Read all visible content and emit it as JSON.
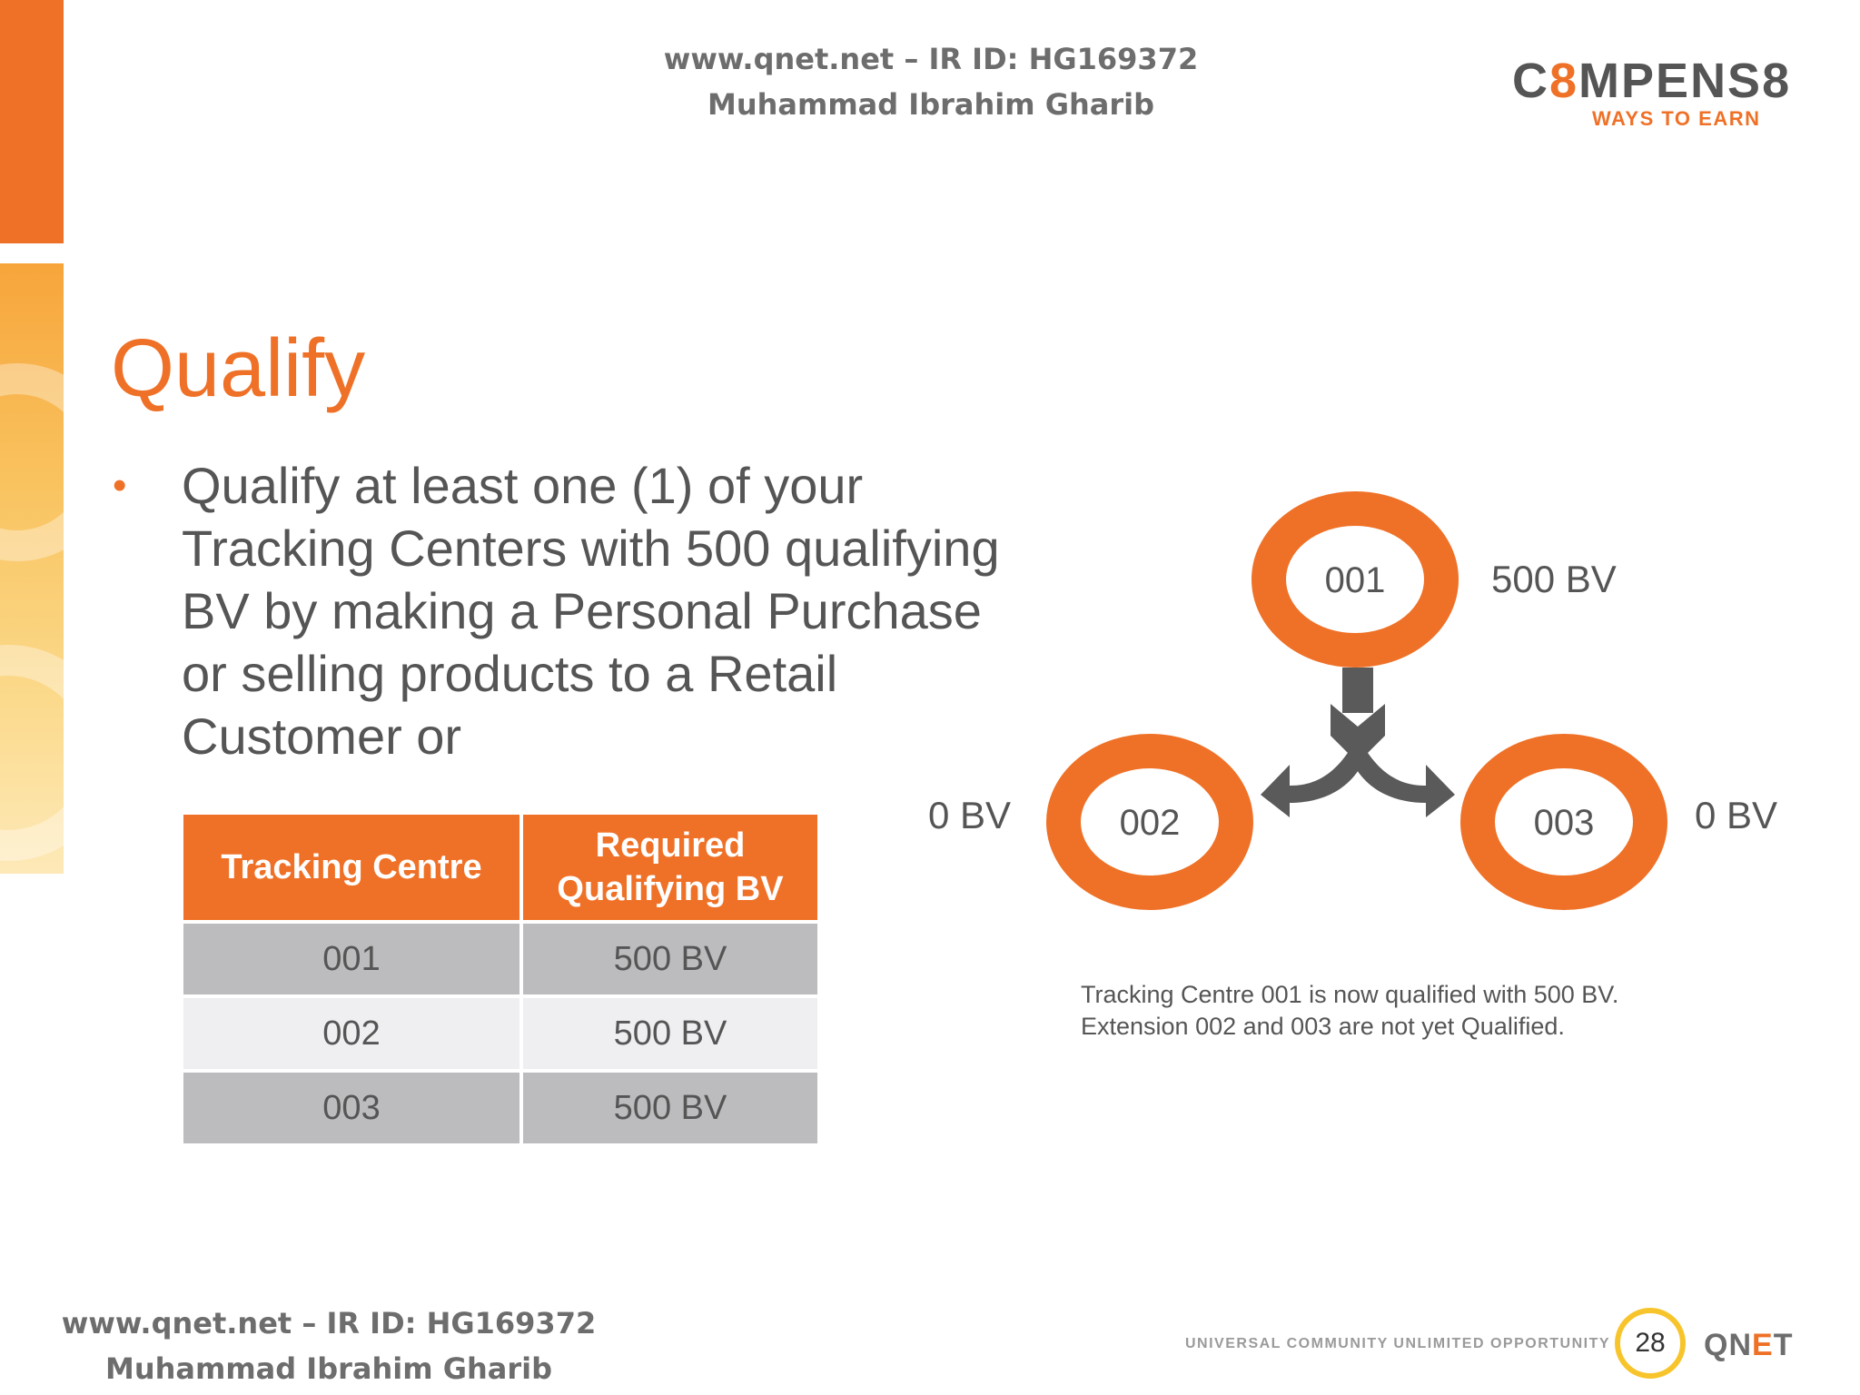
{
  "header_watermark": {
    "line1": "www.qnet.net – IR ID: HG169372",
    "line2": "Muhammad Ibrahim Gharib"
  },
  "logo": {
    "word_prefix": "C",
    "word_8": "8",
    "word_mid": "MPENS",
    "word_end": "8",
    "tagline": "WAYS TO EARN",
    "colors": {
      "accent": "#ef7127",
      "text": "#555555"
    }
  },
  "title": "Qualify",
  "bullet": {
    "text": "Qualify at least one (1) of your Tracking Centers with 500 qualifying BV by making a Personal Purchase or selling products to a Retail Customer or"
  },
  "table": {
    "headers": [
      "Tracking Centre",
      "Required Qualifying BV"
    ],
    "rows": [
      [
        "001",
        "500 BV"
      ],
      [
        "002",
        "500 BV"
      ],
      [
        "003",
        "500 BV"
      ]
    ]
  },
  "diagram": {
    "nodes": [
      {
        "id": "001",
        "bv": "500 BV"
      },
      {
        "id": "002",
        "bv": "0 BV"
      },
      {
        "id": "003",
        "bv": "0 BV"
      }
    ],
    "colors": {
      "ring": "#ef7127",
      "arrow": "#5a5a5a"
    }
  },
  "caption": {
    "line1": "Tracking Centre 001 is now qualified with 500 BV.",
    "line2": "Extension 002 and 003 are not yet Qualified."
  },
  "footer_watermark": {
    "line1": "www.qnet.net – IR ID: HG169372",
    "line2": "Muhammad Ibrahim Gharib"
  },
  "footer": {
    "tagline": "UNIVERSAL COMMUNITY UNLIMITED OPPORTUNITY",
    "page_number": "28",
    "brand_q": "Q",
    "brand_n": "N",
    "brand_e": "E",
    "brand_t": "T"
  }
}
